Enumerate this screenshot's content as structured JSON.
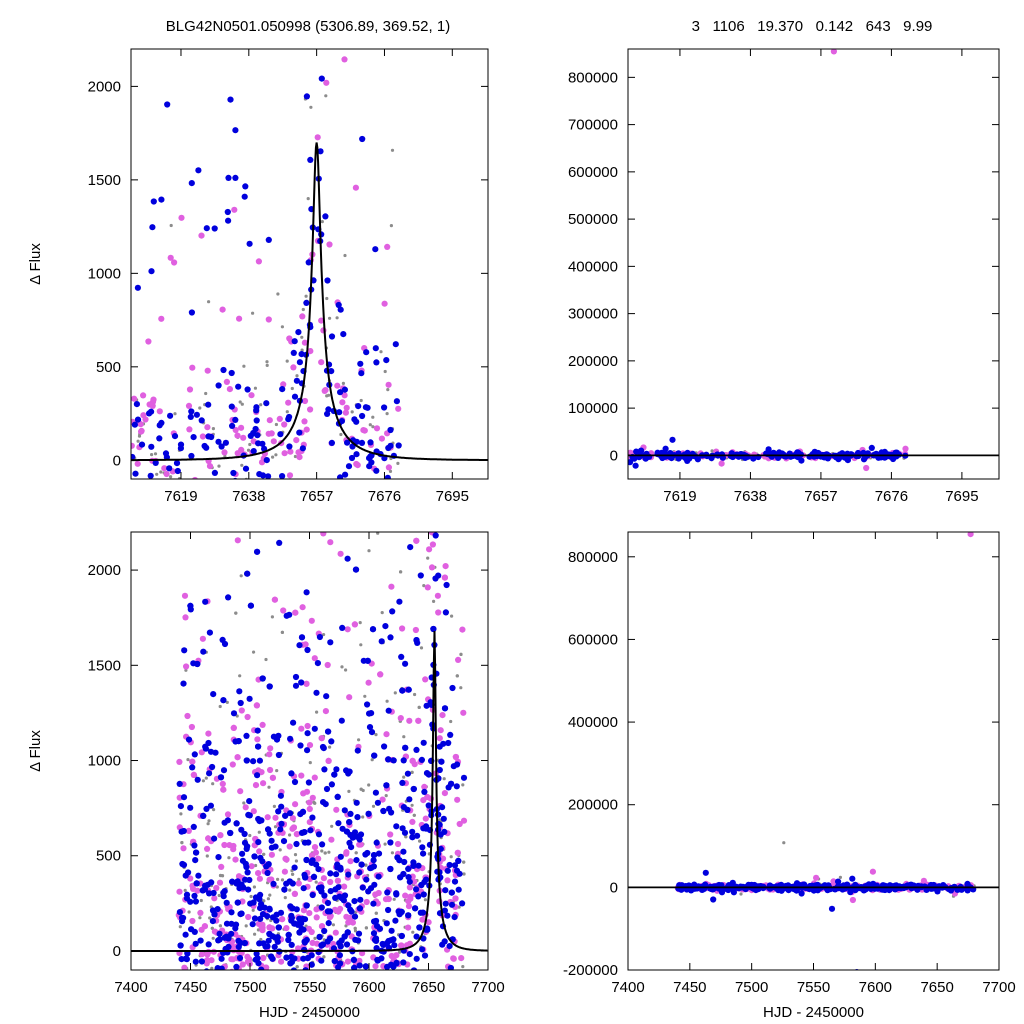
{
  "header": {
    "title": "BLG42N0501.050998 (5306.89, 369.52,    1)",
    "stats": "3   1106   19.370   0.142   643   9.99"
  },
  "colors": {
    "ogle_I": "#0000dd",
    "ogle_V": "#e060e0",
    "other": "#8c8c8c",
    "model": "#000000"
  },
  "chart_data": [
    {
      "id": "top-left",
      "type": "scatter",
      "ylabel": "Δ Flux",
      "xlabel": "",
      "xlim": [
        7605,
        7705
      ],
      "ylim": [
        -100,
        2200
      ],
      "xticks": [
        7619,
        7638,
        7657,
        7676,
        7695
      ],
      "yticks": [
        0,
        500,
        1000,
        1500,
        2000
      ],
      "model": {
        "type": "paczynski",
        "t0": 7657,
        "peak": 1700,
        "tE": 14
      },
      "points": {
        "generator": "dense-around-peak",
        "x_range": [
          7605,
          7680
        ],
        "count": 520
      }
    },
    {
      "id": "top-right",
      "type": "scatter",
      "ylabel": "",
      "xlabel": "",
      "xlim": [
        7605,
        7705
      ],
      "ylim": [
        -50000,
        860000
      ],
      "xticks": [
        7619,
        7638,
        7657,
        7676,
        7695
      ],
      "yticks": [
        0,
        100000,
        200000,
        300000,
        400000,
        500000,
        600000,
        700000,
        800000
      ],
      "outliers": [
        {
          "x": 7660.5,
          "y": 855000,
          "series": "ogle_V"
        },
        {
          "x": 7617,
          "y": 33000,
          "series": "ogle_I"
        }
      ],
      "points": {
        "generator": "flat-baseline",
        "x_range": [
          7605,
          7680
        ],
        "count": 400
      }
    },
    {
      "id": "bottom-left",
      "type": "scatter",
      "ylabel": "Δ Flux",
      "xlabel": "HJD - 2450000",
      "xlim": [
        7400,
        7700
      ],
      "ylim": [
        -100,
        2200
      ],
      "xticks": [
        7400,
        7450,
        7500,
        7550,
        7600,
        7650,
        7700
      ],
      "yticks": [
        0,
        500,
        1000,
        1500,
        2000
      ],
      "model": {
        "type": "paczynski",
        "t0": 7655,
        "peak": 1680,
        "tE": 14
      },
      "points": {
        "generator": "season",
        "x_range": [
          7440,
          7680
        ],
        "count": 1700
      }
    },
    {
      "id": "bottom-right",
      "type": "scatter",
      "ylabel": "",
      "xlabel": "HJD - 2450000",
      "xlim": [
        7400,
        7700
      ],
      "ylim": [
        -200000,
        860000
      ],
      "xticks": [
        7400,
        7450,
        7500,
        7550,
        7600,
        7650,
        7700
      ],
      "yticks": [
        -200000,
        0,
        200000,
        400000,
        600000,
        800000
      ],
      "outliers": [
        {
          "x": 7677,
          "y": 855000,
          "series": "ogle_V"
        },
        {
          "x": 7585,
          "y": -205000,
          "series": "ogle_I"
        },
        {
          "x": 7526,
          "y": 108000,
          "series": "other"
        },
        {
          "x": 7598,
          "y": 38000,
          "series": "ogle_V"
        },
        {
          "x": 7565,
          "y": -52000,
          "series": "ogle_I"
        }
      ],
      "points": {
        "generator": "flat-baseline",
        "x_range": [
          7440,
          7680
        ],
        "count": 700
      }
    }
  ]
}
